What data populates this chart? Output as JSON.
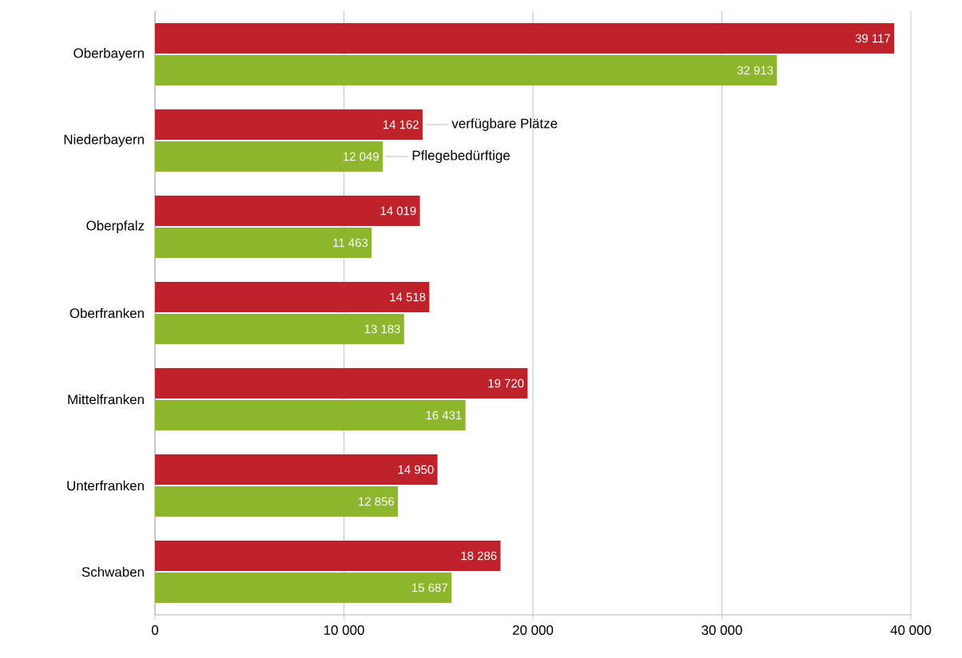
{
  "chart_data": {
    "type": "bar",
    "orientation": "horizontal",
    "categories": [
      "Oberbayern",
      "Niederbayern",
      "Oberpfalz",
      "Oberfranken",
      "Mittelfranken",
      "Unterfranken",
      "Schwaben"
    ],
    "series": [
      {
        "name": "verfügbare Plätze",
        "color": "#c0222c",
        "values": [
          39117,
          14162,
          14019,
          14518,
          19720,
          14950,
          18286
        ],
        "value_labels": [
          "39 117",
          "14 162",
          "14 019",
          "14 518",
          "19 720",
          "14 950",
          "18 286"
        ]
      },
      {
        "name": "Pflegebedürftige",
        "color": "#8db62c",
        "values": [
          32913,
          12049,
          11463,
          13183,
          16431,
          12856,
          15687
        ],
        "value_labels": [
          "32 913",
          "12 049",
          "11 463",
          "13 183",
          "16 431",
          "12 856",
          "15 687"
        ]
      }
    ],
    "xlim": [
      0,
      40000
    ],
    "xticks": [
      {
        "value": 0,
        "label": "0"
      },
      {
        "value": 10000,
        "label": "10 000"
      },
      {
        "value": 20000,
        "label": "20 000"
      },
      {
        "value": 30000,
        "label": "30 000"
      },
      {
        "value": 40000,
        "label": "40 000"
      }
    ],
    "grid": "x"
  }
}
